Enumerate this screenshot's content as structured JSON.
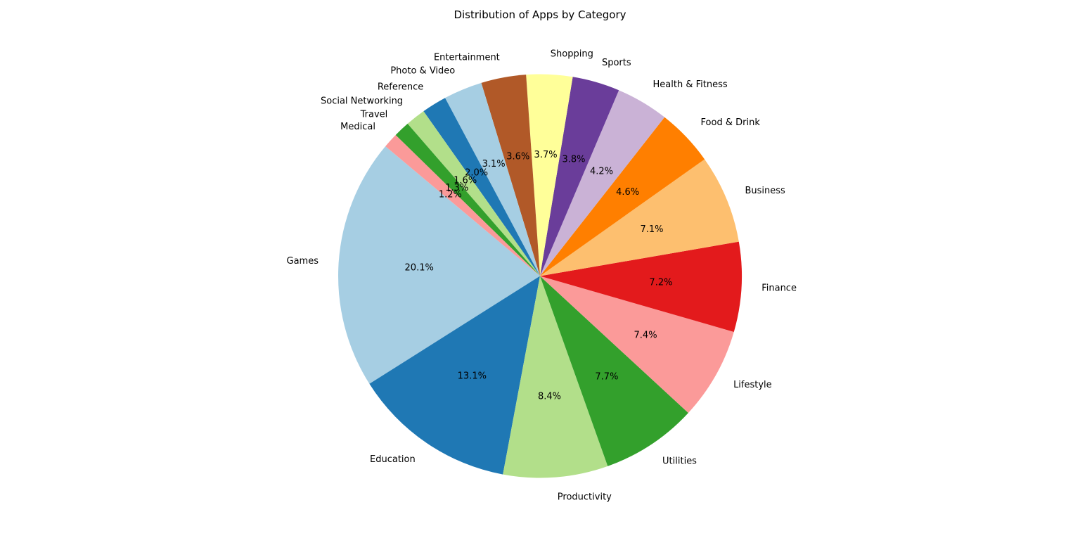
{
  "chart_data": {
    "type": "pie",
    "title": "Distribution of Apps by Category",
    "start_angle_deg": 140,
    "direction": "counterclockwise",
    "slices": [
      {
        "label": "Games",
        "value": 20.1,
        "pct_text": "20.1%",
        "color": "#a6cee3"
      },
      {
        "label": "Education",
        "value": 13.1,
        "pct_text": "13.1%",
        "color": "#1f78b4"
      },
      {
        "label": "Productivity",
        "value": 8.4,
        "pct_text": "8.4%",
        "color": "#b2df8a"
      },
      {
        "label": "Utilities",
        "value": 7.7,
        "pct_text": "7.7%",
        "color": "#33a02c"
      },
      {
        "label": "Lifestyle",
        "value": 7.4,
        "pct_text": "7.4%",
        "color": "#fb9a99"
      },
      {
        "label": "Finance",
        "value": 7.2,
        "pct_text": "7.2%",
        "color": "#e31a1c"
      },
      {
        "label": "Business",
        "value": 7.1,
        "pct_text": "7.1%",
        "color": "#fdbf6f"
      },
      {
        "label": "Food & Drink",
        "value": 4.6,
        "pct_text": "4.6%",
        "color": "#ff7f00"
      },
      {
        "label": "Health & Fitness",
        "value": 4.2,
        "pct_text": "4.2%",
        "color": "#cab2d6"
      },
      {
        "label": "Sports",
        "value": 3.8,
        "pct_text": "3.8%",
        "color": "#6a3d9a"
      },
      {
        "label": "Shopping",
        "value": 3.7,
        "pct_text": "3.7%",
        "color": "#ffff99"
      },
      {
        "label": "Entertainment",
        "value": 3.6,
        "pct_text": "3.6%",
        "color": "#b15928"
      },
      {
        "label": "Photo & Video",
        "value": 3.1,
        "pct_text": "3.1%",
        "color": "#a6cee3"
      },
      {
        "label": "Reference",
        "value": 2.0,
        "pct_text": "2.0%",
        "color": "#1f78b4"
      },
      {
        "label": "Social Networking",
        "value": 1.6,
        "pct_text": "1.6%",
        "color": "#b2df8a"
      },
      {
        "label": "Travel",
        "value": 1.3,
        "pct_text": "1.3%",
        "color": "#33a02c"
      },
      {
        "label": "Medical",
        "value": 1.2,
        "pct_text": "1.2%",
        "color": "#fb9a99"
      }
    ]
  }
}
